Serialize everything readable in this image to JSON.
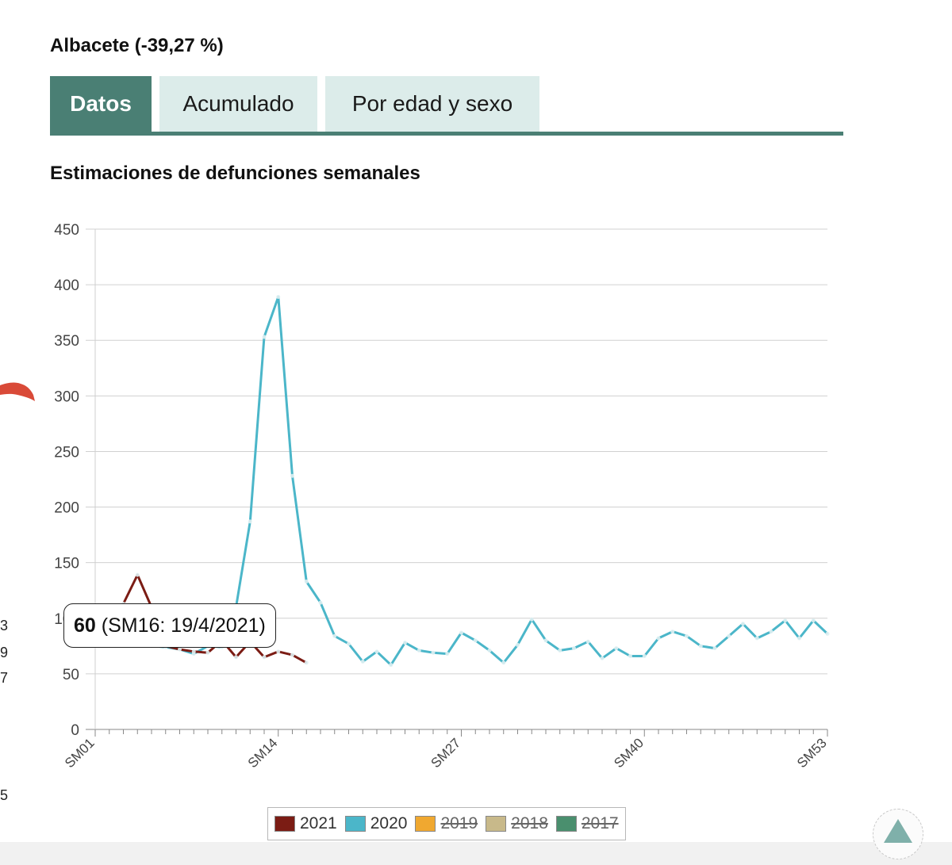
{
  "header": {
    "title": "Albacete (-39,27 %)"
  },
  "tabs": [
    {
      "label": "Datos",
      "active": true
    },
    {
      "label": "Acumulado",
      "active": false
    },
    {
      "label": "Por edad y sexo",
      "active": false
    }
  ],
  "side_digits": [
    "3",
    "9",
    "7",
    "5"
  ],
  "chart_data": {
    "type": "line",
    "title": "Estimaciones de defunciones semanales",
    "xlabel": "",
    "ylabel": "",
    "ylim": [
      0,
      450
    ],
    "y_ticks": [
      0,
      50,
      100,
      150,
      200,
      250,
      300,
      350,
      400,
      450
    ],
    "x_tick_labels": [
      "SM01",
      "SM14",
      "SM27",
      "SM40",
      "SM53"
    ],
    "x_range": [
      1,
      53
    ],
    "grid": true,
    "legend_position": "bottom",
    "series": [
      {
        "name": "2021",
        "color": "#7b1c14",
        "visible": true,
        "x": [
          3,
          4,
          5,
          6,
          7,
          8,
          9,
          10,
          11,
          12,
          13,
          14,
          15,
          16
        ],
        "values": [
          113,
          139,
          110,
          75,
          72,
          70,
          69,
          80,
          65,
          79,
          65,
          70,
          67,
          60
        ]
      },
      {
        "name": "2020",
        "color": "#4bb6c9",
        "visible": true,
        "x": [
          1,
          2,
          3,
          4,
          5,
          6,
          7,
          8,
          9,
          10,
          11,
          12,
          13,
          14,
          15,
          16,
          17,
          18,
          19,
          20,
          21,
          22,
          23,
          24,
          25,
          26,
          27,
          28,
          29,
          30,
          31,
          32,
          33,
          34,
          35,
          36,
          37,
          38,
          39,
          40,
          41,
          42,
          43,
          44,
          45,
          46,
          47,
          48,
          49,
          50,
          51,
          52,
          53
        ],
        "values": [
          78,
          82,
          80,
          76,
          75,
          74,
          72,
          68,
          75,
          74,
          110,
          187,
          353,
          389,
          228,
          133,
          114,
          84,
          77,
          61,
          70,
          58,
          78,
          71,
          69,
          68,
          87,
          80,
          71,
          60,
          76,
          99,
          80,
          71,
          73,
          79,
          64,
          73,
          66,
          66,
          82,
          88,
          84,
          75,
          73,
          84,
          95,
          82,
          88,
          98,
          82,
          98,
          86
        ]
      },
      {
        "name": "2019",
        "color": "#f0a830",
        "visible": false,
        "x": [],
        "values": []
      },
      {
        "name": "2018",
        "color": "#c8b98a",
        "visible": false,
        "x": [],
        "values": []
      },
      {
        "name": "2017",
        "color": "#4a8f6e",
        "visible": false,
        "x": [],
        "values": []
      }
    ],
    "tooltip": {
      "value": "60",
      "label": "(SM16: 19/4/2021)"
    }
  },
  "icons": {
    "scroll_top": "triangle-up-icon"
  }
}
